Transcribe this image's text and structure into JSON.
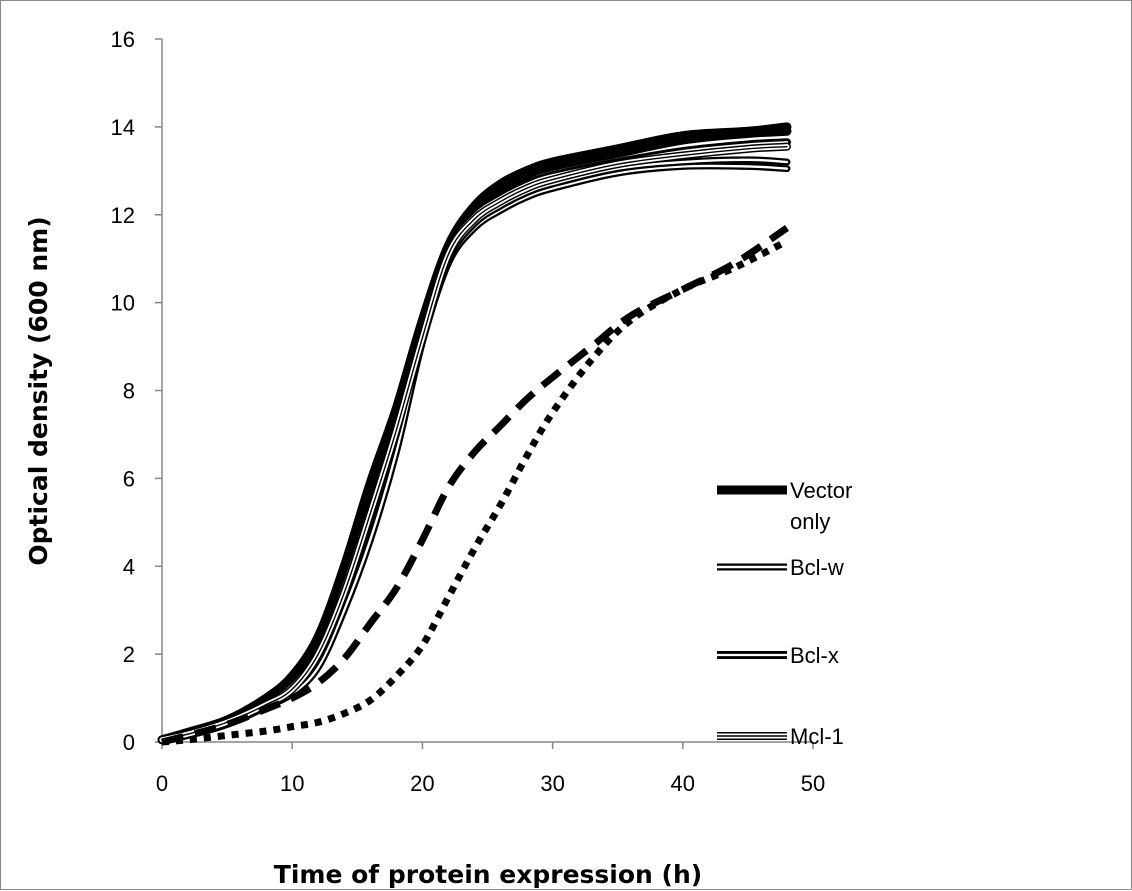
{
  "chart_data": {
    "type": "line",
    "title": "",
    "xlabel": "Time of protein expression (h)",
    "ylabel": "Optical density (600 nm)",
    "xlim": [
      0,
      50
    ],
    "ylim": [
      0,
      16
    ],
    "x_ticks": [
      "0",
      "10",
      "20",
      "30",
      "40",
      "50"
    ],
    "y_ticks": [
      "0",
      "2",
      "4",
      "6",
      "8",
      "10",
      "12",
      "14",
      "16"
    ],
    "grid": false,
    "legend_position": "right",
    "legend": [
      {
        "label": "Vector only",
        "style": "thick-solid"
      },
      {
        "label": "Bcl-w",
        "style": "double-line"
      },
      {
        "label": "Bcl-x",
        "style": "double-line-bold"
      },
      {
        "label": "Mcl-1",
        "style": "triple-line"
      }
    ],
    "series": [
      {
        "name": "Vector only",
        "style": "thick-solid",
        "x": [
          0,
          2,
          5,
          8,
          10,
          12,
          14,
          16,
          18,
          20,
          22,
          24,
          26,
          28,
          30,
          35,
          40,
          45,
          48
        ],
        "values": [
          0.05,
          0.22,
          0.5,
          1.0,
          1.5,
          2.4,
          4.0,
          5.9,
          7.6,
          9.6,
          11.3,
          12.2,
          12.7,
          13.0,
          13.2,
          13.5,
          13.8,
          13.9,
          14.0
        ]
      },
      {
        "name": "Vector only",
        "style": "thick-solid",
        "x": [
          0,
          2,
          5,
          8,
          10,
          12,
          14,
          16,
          18,
          20,
          22,
          24,
          26,
          28,
          30,
          35,
          40,
          45,
          48
        ],
        "values": [
          0.05,
          0.2,
          0.45,
          0.9,
          1.4,
          2.2,
          3.8,
          5.6,
          7.4,
          9.4,
          11.1,
          12.0,
          12.5,
          12.9,
          13.1,
          13.4,
          13.7,
          13.85,
          13.9
        ]
      },
      {
        "name": "Bcl-w",
        "style": "double-line",
        "x": [
          0,
          2,
          5,
          8,
          10,
          12,
          14,
          16,
          18,
          20,
          22,
          24,
          26,
          28,
          30,
          35,
          40,
          45,
          48
        ],
        "values": [
          0.05,
          0.15,
          0.4,
          0.8,
          1.1,
          1.7,
          3.0,
          4.6,
          6.6,
          9.1,
          10.9,
          11.7,
          12.1,
          12.4,
          12.6,
          12.95,
          13.1,
          13.1,
          13.05
        ]
      },
      {
        "name": "Bcl-w",
        "style": "double-line",
        "x": [
          0,
          2,
          5,
          8,
          10,
          12,
          14,
          16,
          18,
          20,
          22,
          24,
          26,
          28,
          30,
          35,
          40,
          45,
          48
        ],
        "values": [
          0.05,
          0.18,
          0.42,
          0.85,
          1.2,
          1.9,
          3.3,
          5.0,
          7.0,
          9.3,
          11.0,
          11.8,
          12.2,
          12.5,
          12.7,
          13.05,
          13.2,
          13.25,
          13.2
        ]
      },
      {
        "name": "Bcl-x",
        "style": "double-line-bold",
        "x": [
          0,
          2,
          5,
          8,
          10,
          12,
          14,
          16,
          18,
          20,
          22,
          24,
          26,
          28,
          30,
          35,
          40,
          45,
          48
        ],
        "values": [
          0.05,
          0.2,
          0.5,
          0.9,
          1.3,
          2.1,
          3.6,
          5.4,
          7.2,
          9.3,
          11.2,
          12.0,
          12.4,
          12.7,
          12.9,
          13.2,
          13.45,
          13.6,
          13.65
        ]
      },
      {
        "name": "Mcl-1",
        "style": "triple-line",
        "x": [
          0,
          2,
          5,
          8,
          10,
          12,
          14,
          16,
          18,
          20,
          22,
          24,
          26,
          28,
          30,
          35,
          40,
          45,
          48
        ],
        "values": [
          0.05,
          0.18,
          0.45,
          0.85,
          1.2,
          2.0,
          3.4,
          5.2,
          7.1,
          9.2,
          11.1,
          11.9,
          12.3,
          12.6,
          12.8,
          13.15,
          13.35,
          13.5,
          13.55
        ]
      },
      {
        "name": "",
        "style": "dashed",
        "x": [
          0,
          2,
          5,
          8,
          10,
          12,
          14,
          16,
          18,
          20,
          22,
          24,
          26,
          28,
          30,
          33,
          36,
          40,
          44,
          48
        ],
        "values": [
          0.0,
          0.15,
          0.4,
          0.75,
          1.0,
          1.35,
          1.9,
          2.7,
          3.5,
          4.6,
          5.8,
          6.6,
          7.2,
          7.8,
          8.3,
          9.0,
          9.7,
          10.3,
          10.9,
          11.7
        ]
      },
      {
        "name": "",
        "style": "dotted",
        "x": [
          0,
          2,
          5,
          8,
          10,
          12,
          14,
          16,
          18,
          20,
          22,
          24,
          26,
          28,
          30,
          33,
          36,
          40,
          44,
          48
        ],
        "values": [
          0.0,
          0.05,
          0.15,
          0.25,
          0.35,
          0.45,
          0.65,
          0.95,
          1.5,
          2.2,
          3.3,
          4.4,
          5.4,
          6.5,
          7.5,
          8.7,
          9.6,
          10.3,
          10.8,
          11.4
        ]
      }
    ]
  }
}
